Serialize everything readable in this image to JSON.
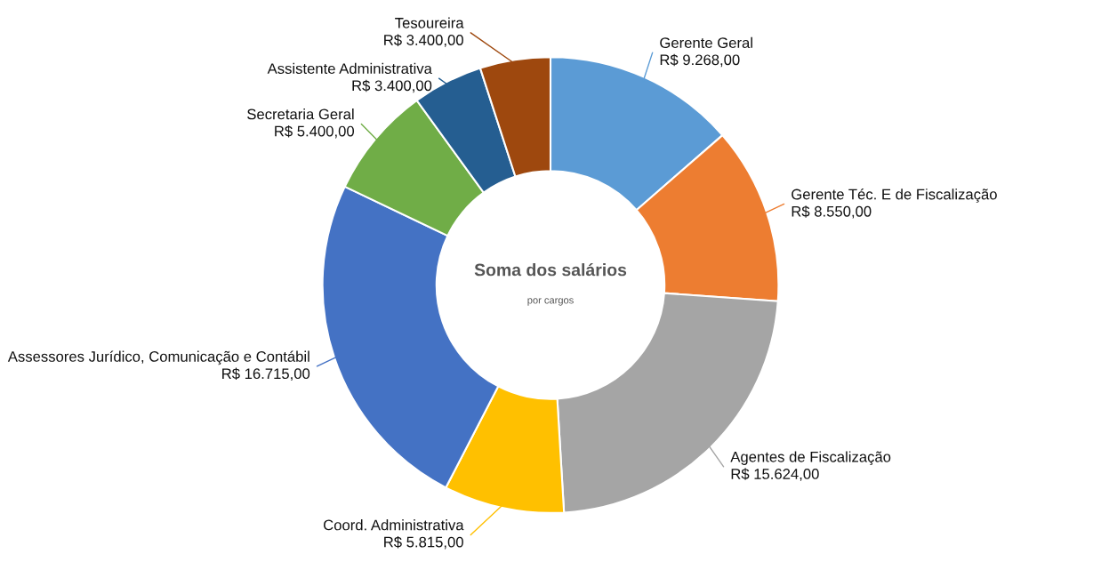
{
  "chart_data": {
    "type": "donut",
    "title": "Soma dos salários",
    "subtitle": "por cargos",
    "categories": [
      "Gerente Geral",
      "Gerente Téc. E de Fiscalização",
      "Agentes de Fiscalização",
      "Coord. Administrativa",
      "Assessores Jurídico, Comunicação e Contábil",
      "Secretaria Geral",
      "Assistente Administrativa",
      "Tesoureira"
    ],
    "values": [
      9268,
      8550,
      15624,
      5815,
      16715,
      5400,
      3400,
      3400
    ],
    "value_labels": [
      "R$ 9.268,00",
      "R$ 8.550,00",
      "R$ 15.624,00",
      "R$ 5.815,00",
      "R$ 16.715,00",
      "R$ 5.400,00",
      "R$ 3.400,00",
      "R$ 3.400,00"
    ],
    "colors": [
      "#5b9bd5",
      "#ed7d31",
      "#a5a5a5",
      "#ffc000",
      "#4472c4",
      "#70ad47",
      "#255e91",
      "#9e480e"
    ],
    "legend": false
  }
}
